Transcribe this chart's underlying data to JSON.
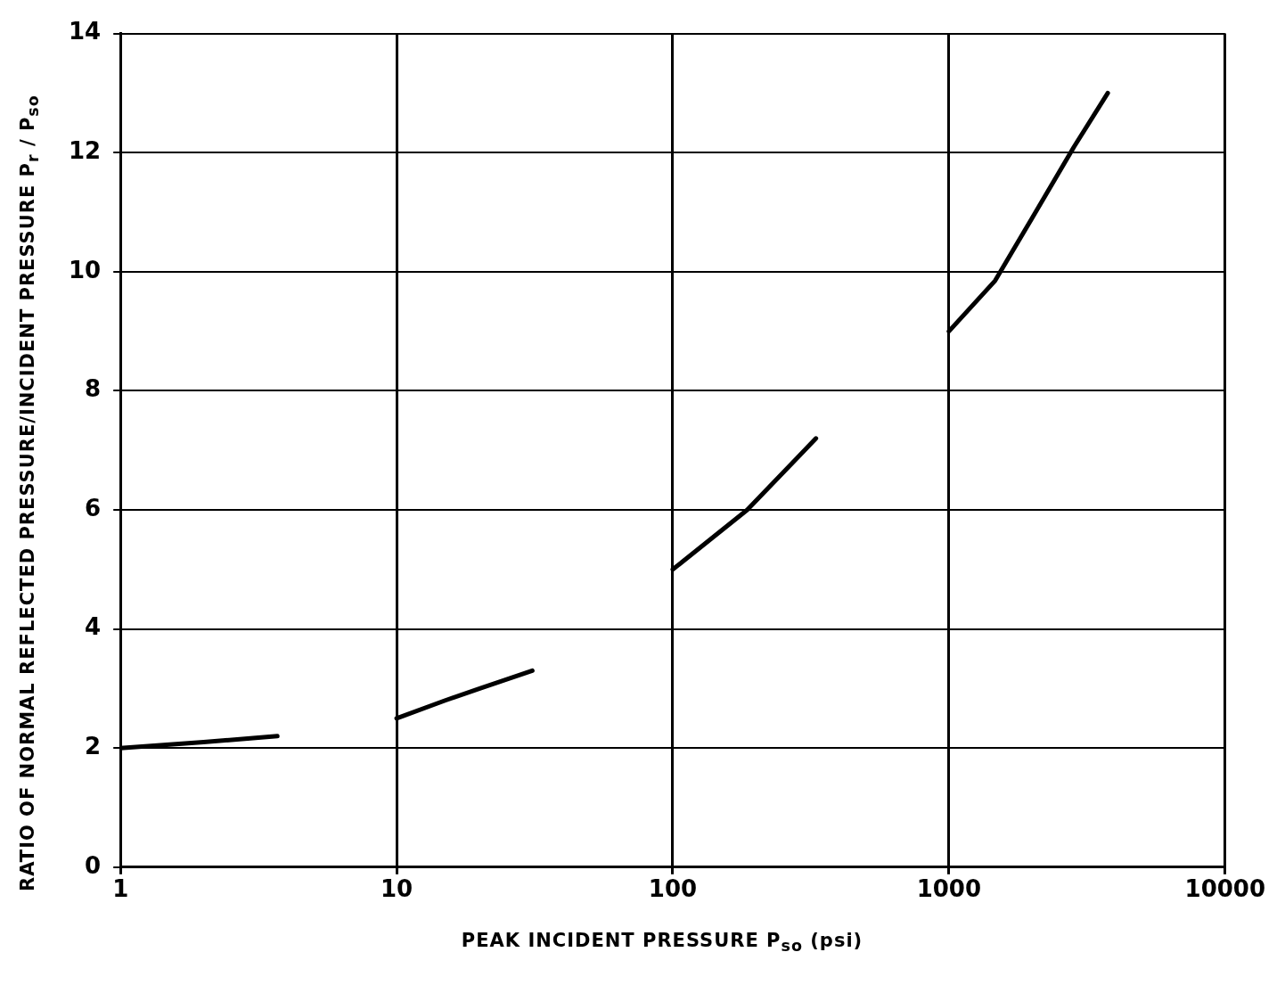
{
  "chart_data": {
    "type": "line",
    "xlabel": "PEAK INCIDENT PRESSURE P$_{so}$ (psi)",
    "ylabel": "RATIO OF NORMAL REFLECTED PRESSURE/INCIDENT PRESSURE P$_{r}$ / P$_{so}$",
    "log": "x",
    "xlim": [
      1,
      10000
    ],
    "xticks": [
      1,
      10,
      100,
      1000,
      10000
    ],
    "ylim": [
      0,
      14
    ],
    "yticks": [
      0,
      2,
      4,
      6,
      8,
      10,
      12,
      14
    ],
    "grid": true,
    "legend": false,
    "marker": "none",
    "line_style": "solid",
    "series": [
      {
        "color": "#000000",
        "x": [
          1,
          2,
          3.7,
          6,
          10,
          15,
          20,
          31,
          50,
          100,
          186,
          330,
          600,
          1000,
          1470,
          2000,
          2840,
          3760
        ],
        "values": [
          2.0,
          2.1,
          2.2,
          null,
          2.5,
          2.8,
          3.0,
          3.3,
          null,
          5.0,
          6.0,
          7.2,
          null,
          9.0,
          9.85,
          10.9,
          12.1,
          13.0
        ]
      }
    ]
  }
}
